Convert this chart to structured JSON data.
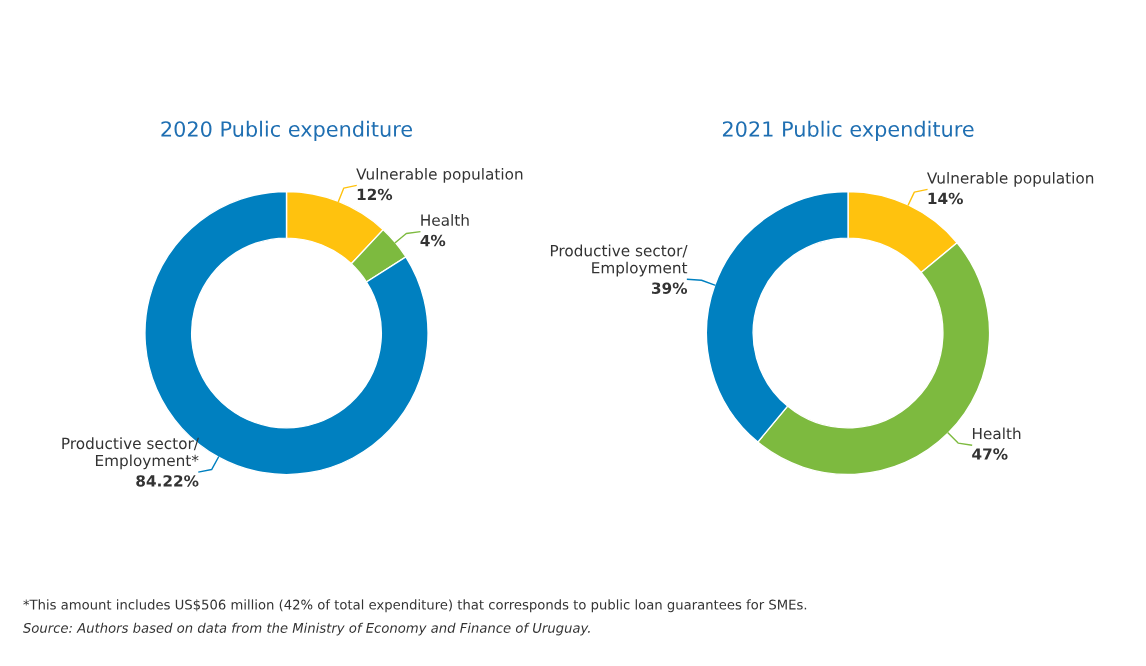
{
  "chart_data": [
    {
      "type": "donut",
      "title": "2020 Public expenditure",
      "categories": [
        "Vulnerable population",
        "Health",
        "Productive sector/\nEmployment*"
      ],
      "values": [
        12,
        4,
        84.22
      ],
      "value_labels": [
        "12%",
        "4%",
        "84.22%"
      ],
      "colors": [
        "#ffc20e",
        "#7dba3f",
        "#0080c0"
      ]
    },
    {
      "type": "donut",
      "title": "2021 Public expenditure",
      "categories": [
        "Vulnerable population",
        "Health",
        "Productive sector/\nEmployment"
      ],
      "values": [
        14,
        47,
        39
      ],
      "value_labels": [
        "14%",
        "47%",
        "39%"
      ],
      "colors": [
        "#ffc20e",
        "#7dba3f",
        "#0080c0"
      ],
      "annotations": [
        "*This amount includes US$506 million (42% of total expenditure) that corresponds to public loan guarantees for SMEs.",
        "Source: Authors based on data from the Ministry of Economy and Finance of Uruguay."
      ]
    }
  ]
}
